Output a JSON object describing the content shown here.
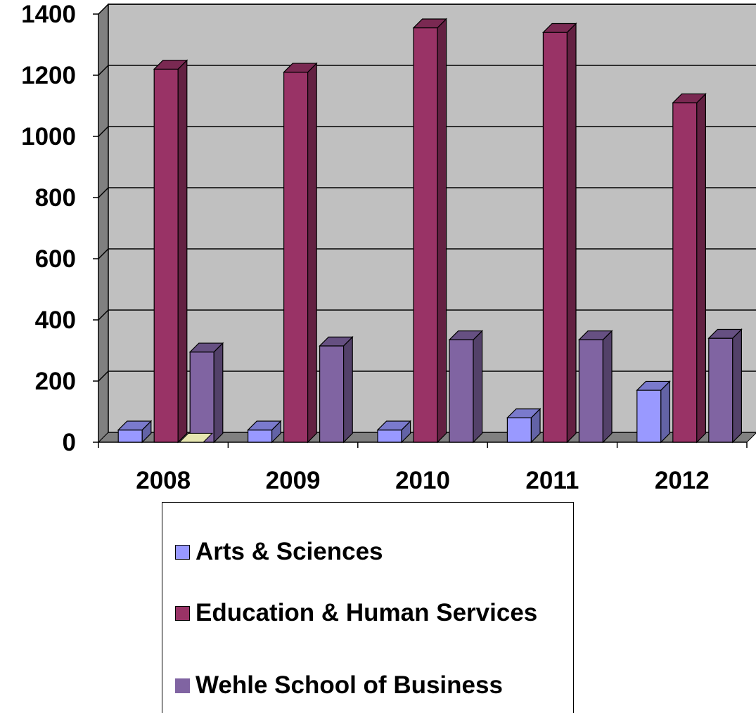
{
  "chart_data": {
    "type": "bar",
    "title": "",
    "xlabel": "",
    "ylabel": "",
    "categories": [
      "2008",
      "2009",
      "2010",
      "2011",
      "2012"
    ],
    "ylim": [
      0,
      1400
    ],
    "yticks": [
      "0",
      "200",
      "400",
      "600",
      "800",
      "1000",
      "1200",
      "1400"
    ],
    "grid": true,
    "legend_position": "bottom",
    "style": "3d-clustered-column",
    "series": [
      {
        "name": "Arts & Sciences",
        "values": [
          40,
          40,
          40,
          80,
          170
        ],
        "color": "#9999ff"
      },
      {
        "name": "Education & Human Services",
        "values": [
          1220,
          1210,
          1355,
          1340,
          1110
        ],
        "color": "#993366"
      },
      {
        "name": "Wehle School of Business",
        "values": [
          295,
          315,
          335,
          335,
          340
        ],
        "color": "#8064a2"
      }
    ],
    "extra_marks": [
      {
        "category": "2008",
        "description": "flat yellow bar at zero",
        "value": 0,
        "color": "#e6e6b0"
      }
    ],
    "wall_color": "#c0c0c0",
    "side_wall_color": "#808080"
  }
}
